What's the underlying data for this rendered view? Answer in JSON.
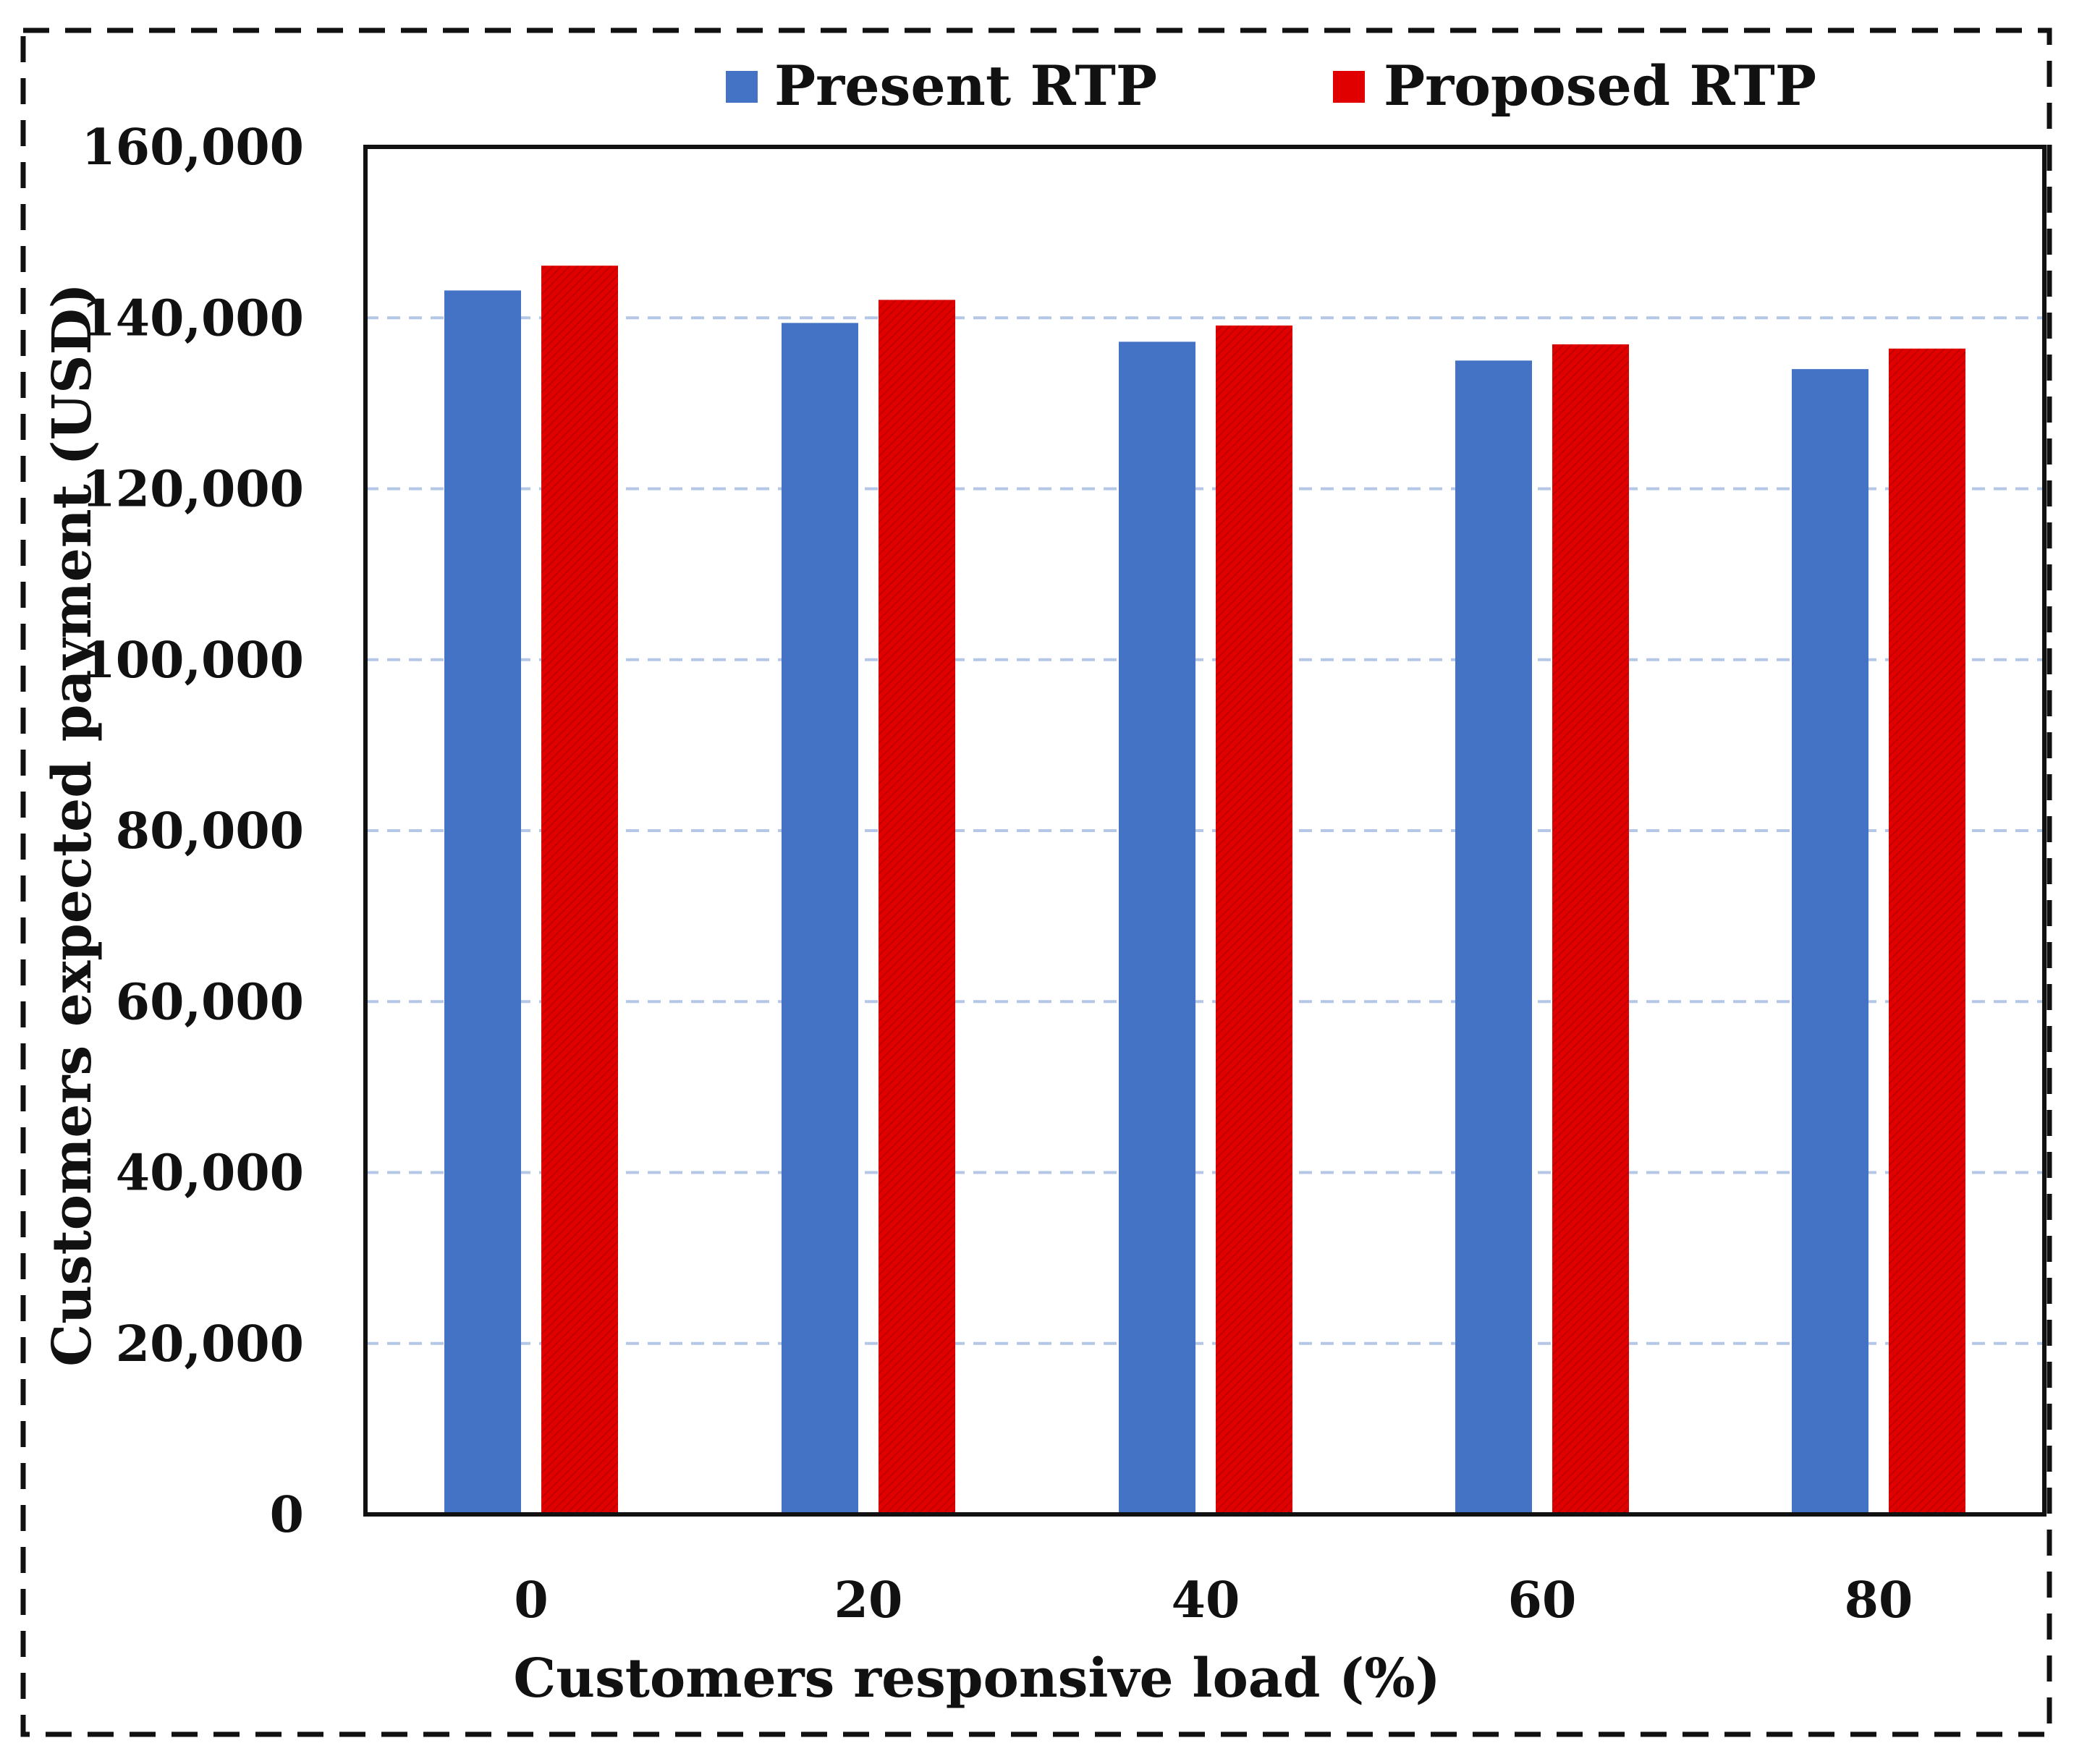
{
  "chart_data": {
    "type": "bar",
    "title": "",
    "xlabel": "Customers responsive load (%)",
    "ylabel": "Customers expected payment (USD)",
    "categories": [
      "0",
      "20",
      "40",
      "60",
      "80"
    ],
    "series": [
      {
        "name": "Present RTP",
        "color": "#4472C4",
        "values": [
          143200,
          139400,
          137200,
          135000,
          134000
        ]
      },
      {
        "name": "Proposed RTP",
        "color": "#E00000",
        "values": [
          146100,
          142100,
          139100,
          136900,
          136400
        ]
      }
    ],
    "ylim": [
      0,
      160000
    ],
    "yticks": [
      "0",
      "20,000",
      "40,000",
      "60,000",
      "80,000",
      "100,000",
      "120,000",
      "140,000",
      "160,000"
    ],
    "grid": true,
    "legend": "top-center"
  }
}
